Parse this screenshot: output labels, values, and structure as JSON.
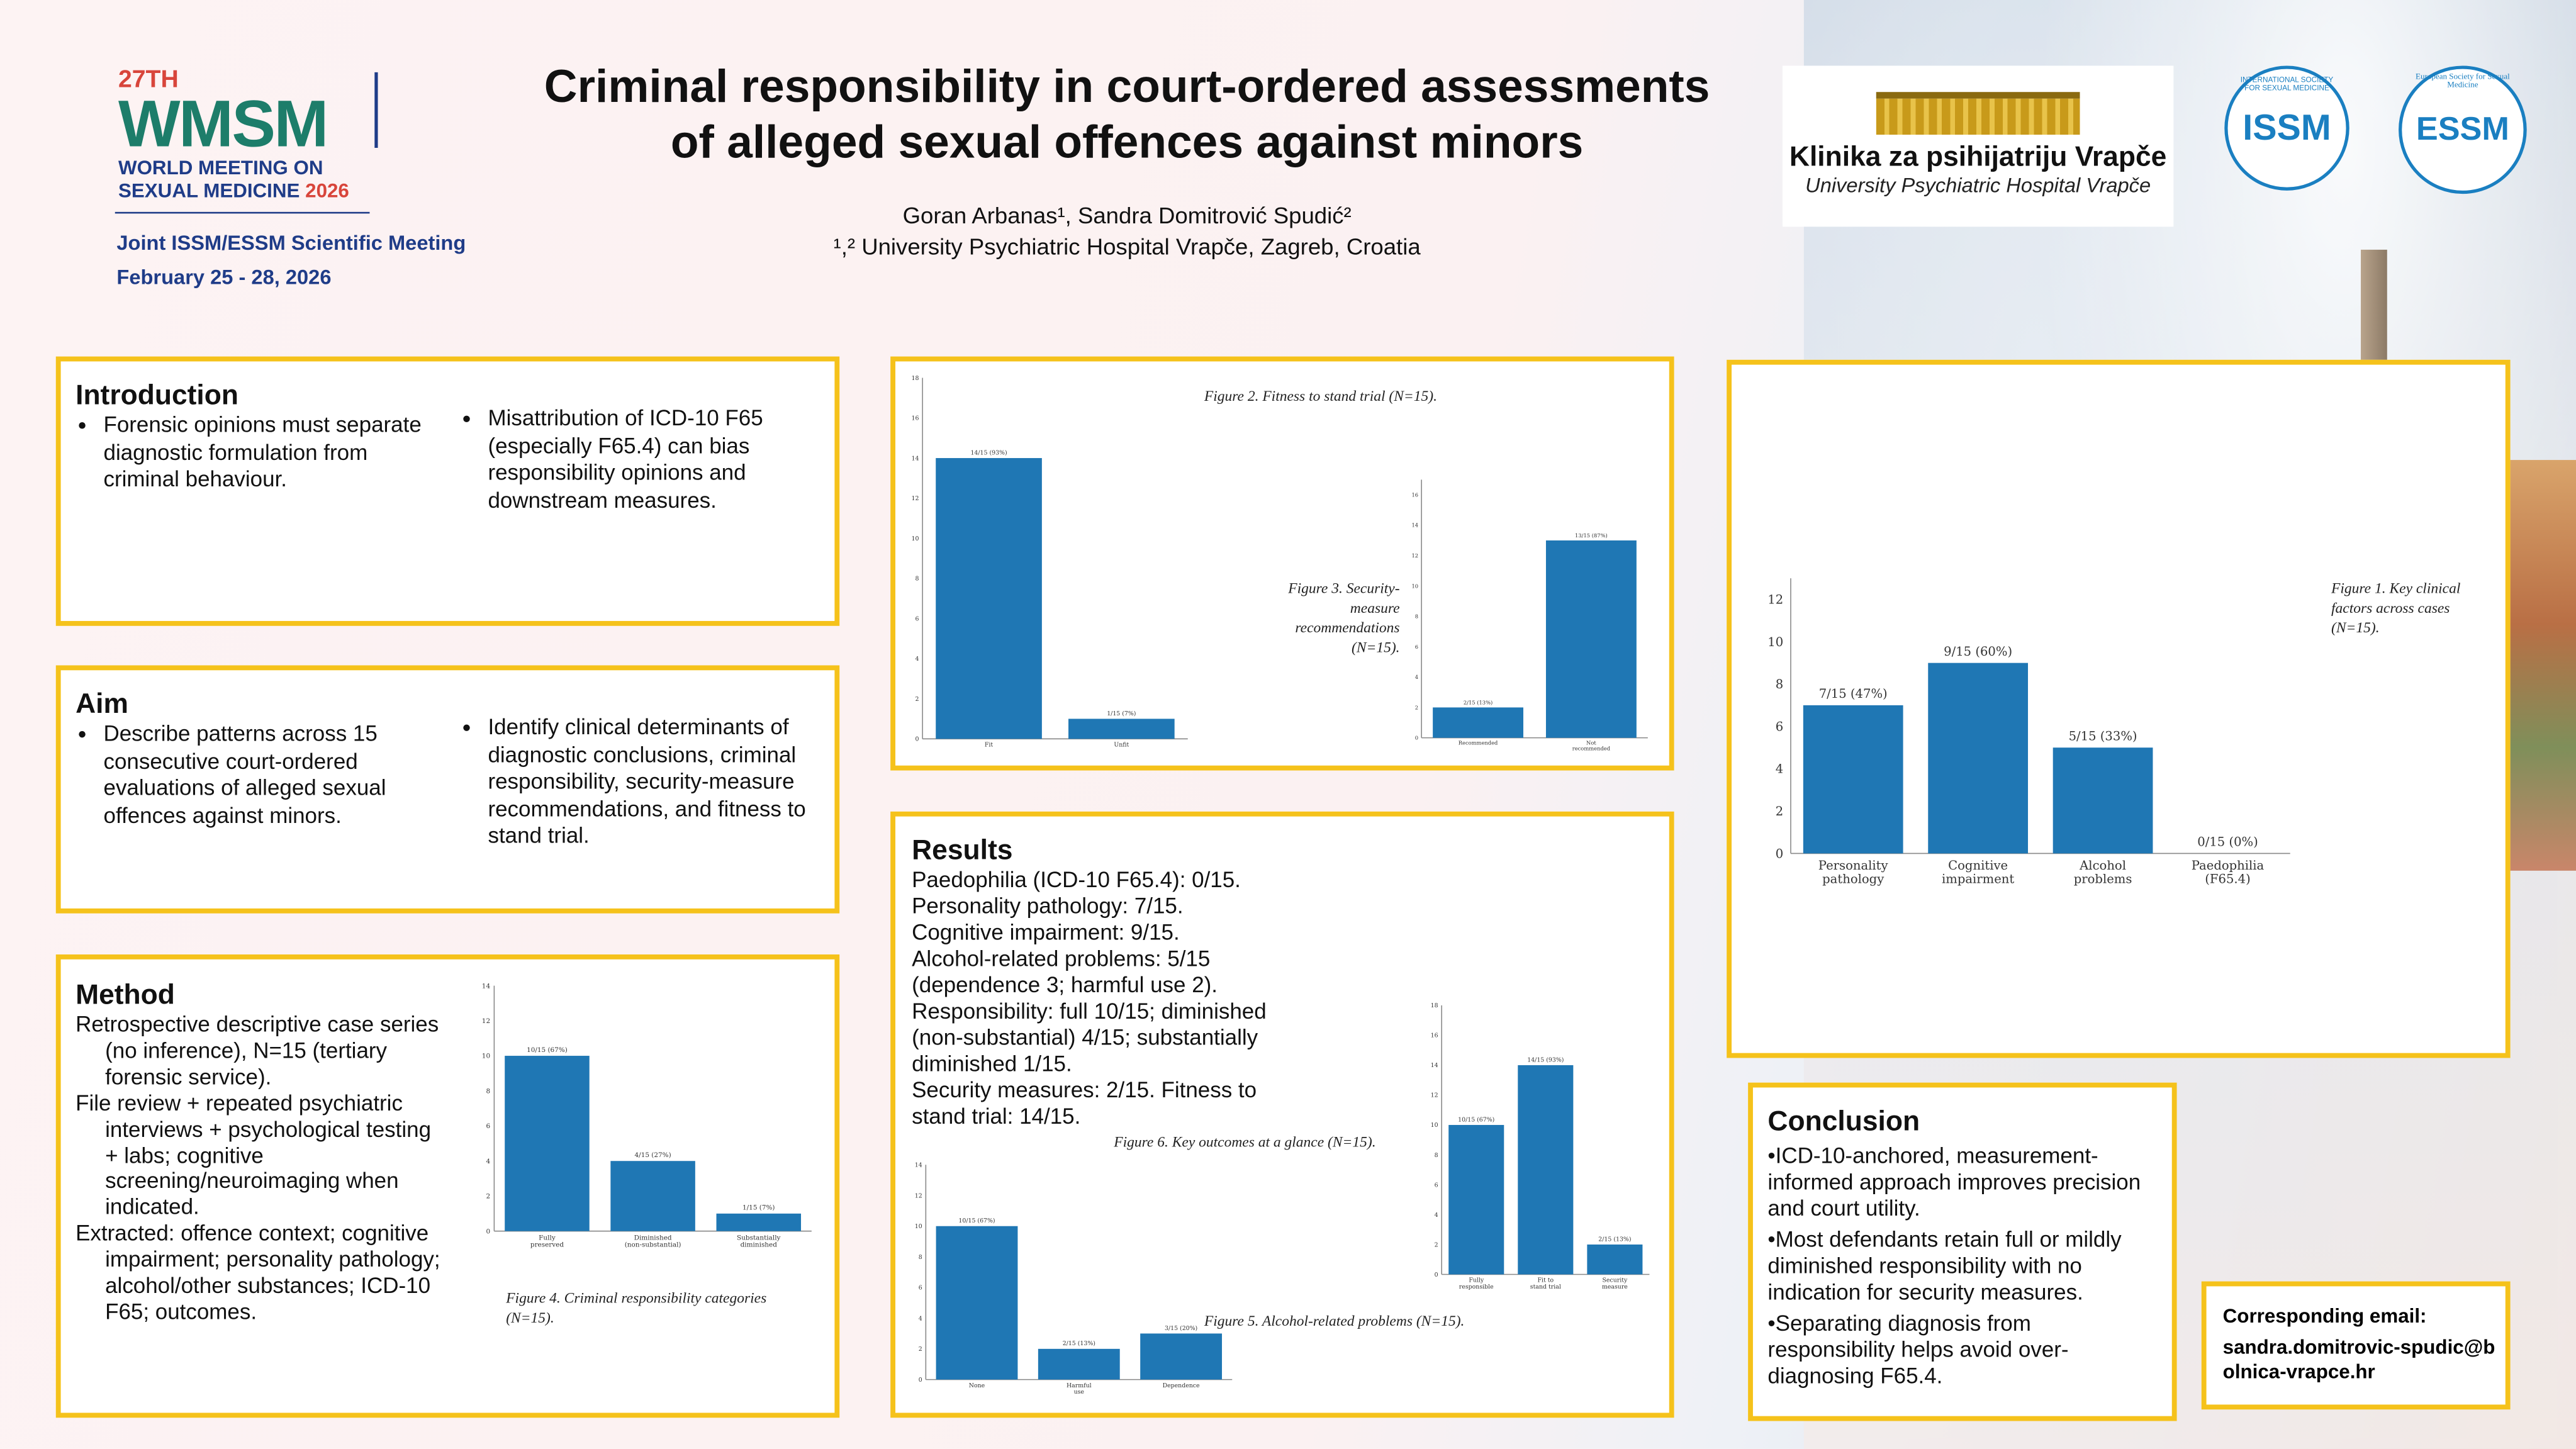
{
  "header": {
    "conference_logo": {
      "edition": "27TH",
      "acronym": "WMSM",
      "line1": "WORLD MEETING ON",
      "line2": "SEXUAL MEDICINE",
      "year": "2026"
    },
    "meeting": "Joint ISSM/ESSM Scientific Meeting",
    "dates": "February 25 - 28, 2026",
    "title_line1": "Criminal responsibility in court-ordered assessments",
    "title_line2": "of alleged sexual offences against minors",
    "authors": "Goran Arbanas¹, Sandra Domitrović Spudić²",
    "affiliation": "¹,² University Psychiatric Hospital Vrapče, Zagreb, Croatia",
    "hospital_logo": {
      "name": "Klinika za psihijatriju Vrapče",
      "subtitle": "University Psychiatric Hospital Vrapče"
    },
    "issm_logo": {
      "text": "ISSM",
      "ring": "INTERNATIONAL SOCIETY FOR SEXUAL MEDICINE"
    },
    "essm_logo": {
      "text": "ESSM",
      "ring": "European Society for Sexual Medicine"
    }
  },
  "introduction": {
    "heading": "Introduction",
    "left": [
      "Forensic opinions must separate diagnostic formulation from criminal behaviour."
    ],
    "right": [
      "Misattribution of ICD-10 F65 (especially F65.4) can bias responsibility opinions and downstream measures."
    ]
  },
  "aim": {
    "heading": "Aim",
    "left": [
      "Describe patterns across 15 consecutive court-ordered evaluations of alleged sexual offences against minors."
    ],
    "right": [
      "Identify clinical determinants of diagnostic conclusions, criminal responsibility, security-measure recommendations, and fitness to stand trial."
    ]
  },
  "method": {
    "heading": "Method",
    "paragraphs": [
      "Retrospective descriptive case series (no inference), N=15 (tertiary forensic service).",
      "File review + repeated psychiatric interviews + psychological testing + labs; cognitive screening/neuroimaging when indicated.",
      "Extracted: offence context; cognitive impairment; personality pathology; alcohol/other substances; ICD-10 F65; outcomes."
    ]
  },
  "results": {
    "heading": "Results",
    "lines": [
      "Paedophilia (ICD-10 F65.4): 0/15.",
      "Personality pathology: 7/15.",
      "Cognitive impairment: 9/15.",
      "Alcohol-related problems: 5/15 (dependence 3; harmful use 2).",
      "Responsibility: full 10/15; diminished (non-substantial) 4/15; substantially diminished 1/15.",
      "Security measures: 2/15. Fitness to stand trial: 14/15."
    ]
  },
  "conclusion": {
    "heading": "Conclusion",
    "points": [
      "•ICD-10-anchored, measurement-informed approach improves precision and court utility.",
      "•Most defendants retain full or mildly diminished responsibility with no indication for security measures.",
      "•Separating diagnosis from responsibility helps avoid over-diagnosing F65.4."
    ]
  },
  "contact": {
    "label": "Corresponding email:",
    "email": "sandra.domitrovic-spudic@bolnica-vrapce.hr"
  },
  "colors": {
    "accent": "#f5c21b",
    "bar": "#1f77b4",
    "brand": "#1d7d6a",
    "navy": "#1f3c88"
  },
  "chart_data": [
    {
      "type": "bar",
      "title": "Figure 1. Key clinical factors across cases (N=15).",
      "categories": [
        "Personality pathology",
        "Cognitive impairment",
        "Alcohol problems",
        "Paedophilia (F65.4)"
      ],
      "values": [
        7,
        9,
        5,
        0
      ],
      "labels": [
        "7/15 (47%)",
        "9/15 (60%)",
        "5/15 (33%)",
        "0/15 (0%)"
      ],
      "ylim": [
        0,
        13
      ],
      "yticks": [
        0,
        2,
        4,
        6,
        8,
        10,
        12
      ],
      "xlabel": "",
      "ylabel": ""
    },
    {
      "type": "bar",
      "title": "Figure 2. Fitness to stand trial (N=15).",
      "categories": [
        "Fit",
        "Unfit"
      ],
      "values": [
        14,
        1
      ],
      "labels": [
        "14/15 (93%)",
        "1/15 (7%)"
      ],
      "ylim": [
        0,
        18
      ],
      "yticks": [
        0,
        2,
        4,
        6,
        8,
        10,
        12,
        14,
        16,
        18
      ],
      "xlabel": "",
      "ylabel": ""
    },
    {
      "type": "bar",
      "title": "Figure 3. Security-measure recommendations (N=15).",
      "categories": [
        "Recommended",
        "Not recommended"
      ],
      "values": [
        2,
        13
      ],
      "labels": [
        "2/15 (13%)",
        "13/15 (87%)"
      ],
      "ylim": [
        0,
        17
      ],
      "yticks": [
        0,
        2,
        4,
        6,
        8,
        10,
        12,
        14,
        16
      ],
      "xlabel": "",
      "ylabel": ""
    },
    {
      "type": "bar",
      "title": "Figure 4. Criminal responsibility categories (N=15).",
      "categories": [
        "Fully preserved",
        "Diminished (non-substantial)",
        "Substantially diminished"
      ],
      "values": [
        10,
        4,
        1
      ],
      "labels": [
        "10/15 (67%)",
        "4/15 (27%)",
        "1/15 (7%)"
      ],
      "ylim": [
        0,
        14
      ],
      "yticks": [
        0,
        2,
        4,
        6,
        8,
        10,
        12,
        14
      ],
      "xlabel": "",
      "ylabel": ""
    },
    {
      "type": "bar",
      "title": "Figure 5. Alcohol-related problems (N=15).",
      "categories": [
        "None",
        "Harmful use",
        "Dependence"
      ],
      "values": [
        10,
        2,
        3
      ],
      "labels": [
        "10/15 (67%)",
        "2/15 (13%)",
        "3/15 (20%)"
      ],
      "ylim": [
        0,
        14
      ],
      "yticks": [
        0,
        2,
        4,
        6,
        8,
        10,
        12,
        14
      ],
      "xlabel": "",
      "ylabel": ""
    },
    {
      "type": "bar",
      "title": "Figure 6. Key outcomes at a glance (N=15).",
      "categories": [
        "Fully responsible",
        "Fit to stand trial",
        "Security measure"
      ],
      "values": [
        10,
        14,
        2
      ],
      "labels": [
        "10/15 (67%)",
        "14/15 (93%)",
        "2/15 (13%)"
      ],
      "ylim": [
        0,
        18
      ],
      "yticks": [
        0,
        2,
        4,
        6,
        8,
        10,
        12,
        14,
        16,
        18
      ],
      "xlabel": "",
      "ylabel": ""
    }
  ]
}
